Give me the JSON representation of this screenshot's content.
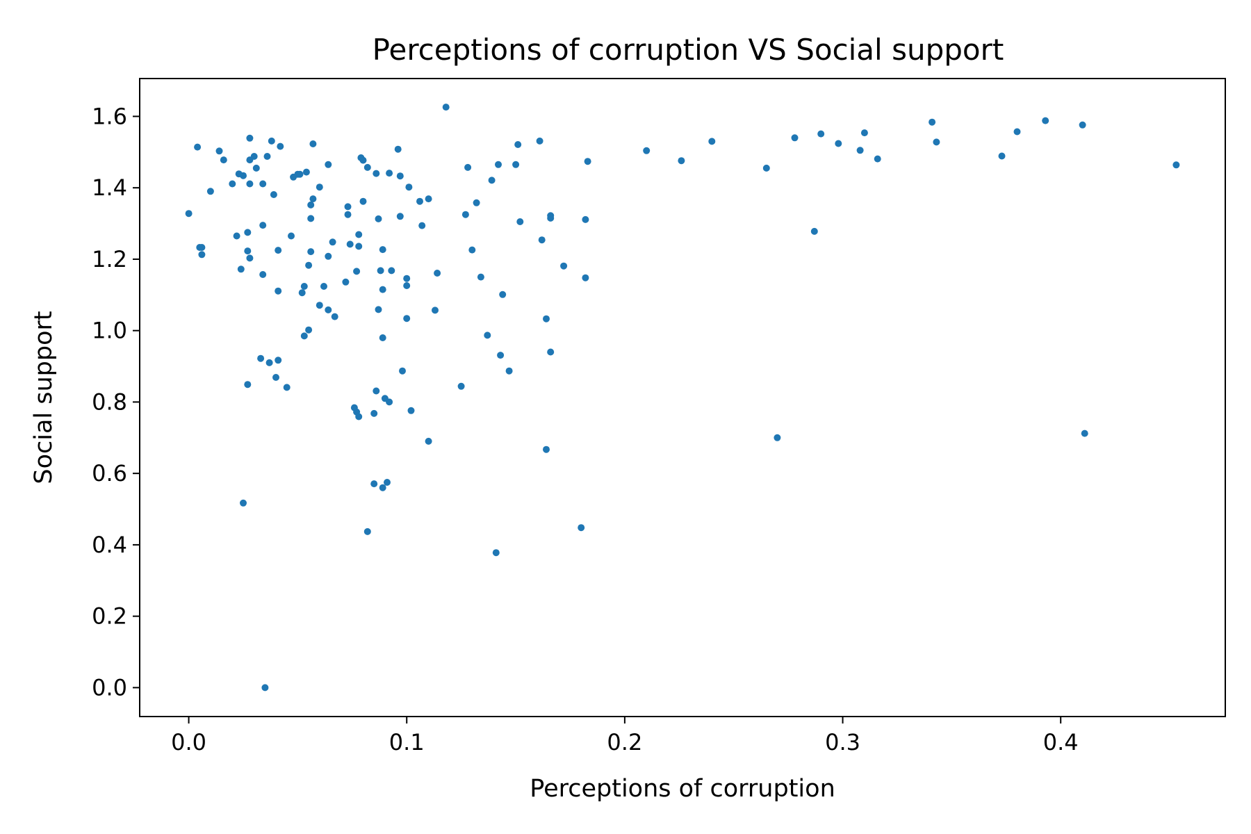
{
  "chart_data": {
    "type": "scatter",
    "title": "Perceptions of corruption VS Social support",
    "xlabel": "Perceptions of corruption",
    "ylabel": "Social support",
    "xlim": [
      -0.0225,
      0.4755
    ],
    "ylim": [
      -0.081,
      1.706
    ],
    "xticks": [
      {
        "value": 0.0,
        "label": "0.0"
      },
      {
        "value": 0.1,
        "label": "0.1"
      },
      {
        "value": 0.2,
        "label": "0.2"
      },
      {
        "value": 0.3,
        "label": "0.3"
      },
      {
        "value": 0.4,
        "label": "0.4"
      }
    ],
    "yticks": [
      {
        "value": 0.0,
        "label": "0.0"
      },
      {
        "value": 0.2,
        "label": "0.2"
      },
      {
        "value": 0.4,
        "label": "0.4"
      },
      {
        "value": 0.6,
        "label": "0.6"
      },
      {
        "value": 0.8,
        "label": "0.8"
      },
      {
        "value": 1.0,
        "label": "1.0"
      },
      {
        "value": 1.2,
        "label": "1.2"
      },
      {
        "value": 1.4,
        "label": "1.4"
      },
      {
        "value": 1.6,
        "label": "1.6"
      }
    ],
    "grid": false,
    "marker_color": "#1f77b4",
    "points": [
      [
        0.0,
        1.328
      ],
      [
        0.004,
        1.514
      ],
      [
        0.005,
        1.233
      ],
      [
        0.006,
        1.233
      ],
      [
        0.006,
        1.213
      ],
      [
        0.01,
        1.39
      ],
      [
        0.014,
        1.503
      ],
      [
        0.016,
        1.478
      ],
      [
        0.02,
        1.411
      ],
      [
        0.022,
        1.265
      ],
      [
        0.023,
        1.439
      ],
      [
        0.024,
        1.172
      ],
      [
        0.025,
        1.434
      ],
      [
        0.025,
        0.517
      ],
      [
        0.027,
        1.275
      ],
      [
        0.027,
        1.223
      ],
      [
        0.027,
        0.849
      ],
      [
        0.028,
        1.539
      ],
      [
        0.028,
        1.411
      ],
      [
        0.028,
        1.478
      ],
      [
        0.028,
        1.203
      ],
      [
        0.03,
        1.488
      ],
      [
        0.031,
        1.455
      ],
      [
        0.033,
        0.922
      ],
      [
        0.034,
        1.411
      ],
      [
        0.034,
        1.295
      ],
      [
        0.034,
        1.157
      ],
      [
        0.035,
        0.0
      ],
      [
        0.036,
        1.488
      ],
      [
        0.037,
        0.91
      ],
      [
        0.038,
        1.531
      ],
      [
        0.039,
        1.381
      ],
      [
        0.04,
        0.869
      ],
      [
        0.041,
        1.225
      ],
      [
        0.041,
        1.111
      ],
      [
        0.041,
        0.917
      ],
      [
        0.042,
        1.516
      ],
      [
        0.045,
        0.841
      ],
      [
        0.047,
        1.265
      ],
      [
        0.048,
        1.43
      ],
      [
        0.05,
        1.438
      ],
      [
        0.051,
        1.438
      ],
      [
        0.052,
        1.106
      ],
      [
        0.053,
        1.124
      ],
      [
        0.053,
        0.985
      ],
      [
        0.054,
        1.444
      ],
      [
        0.055,
        1.183
      ],
      [
        0.055,
        1.002
      ],
      [
        0.056,
        1.352
      ],
      [
        0.056,
        1.314
      ],
      [
        0.056,
        1.221
      ],
      [
        0.057,
        1.369
      ],
      [
        0.057,
        1.523
      ],
      [
        0.06,
        1.402
      ],
      [
        0.06,
        1.071
      ],
      [
        0.062,
        1.124
      ],
      [
        0.064,
        1.465
      ],
      [
        0.064,
        1.208
      ],
      [
        0.064,
        1.058
      ],
      [
        0.066,
        1.248
      ],
      [
        0.067,
        1.039
      ],
      [
        0.072,
        1.136
      ],
      [
        0.073,
        1.347
      ],
      [
        0.073,
        1.325
      ],
      [
        0.074,
        1.242
      ],
      [
        0.076,
        0.784
      ],
      [
        0.077,
        1.166
      ],
      [
        0.077,
        0.772
      ],
      [
        0.078,
        1.269
      ],
      [
        0.078,
        1.236
      ],
      [
        0.078,
        0.759
      ],
      [
        0.079,
        1.484
      ],
      [
        0.08,
        1.477
      ],
      [
        0.08,
        1.362
      ],
      [
        0.082,
        1.457
      ],
      [
        0.082,
        0.437
      ],
      [
        0.085,
        0.768
      ],
      [
        0.085,
        0.571
      ],
      [
        0.086,
        1.44
      ],
      [
        0.086,
        0.831
      ],
      [
        0.087,
        1.313
      ],
      [
        0.087,
        1.059
      ],
      [
        0.088,
        1.168
      ],
      [
        0.089,
        1.227
      ],
      [
        0.089,
        1.115
      ],
      [
        0.089,
        0.98
      ],
      [
        0.089,
        0.56
      ],
      [
        0.09,
        0.81
      ],
      [
        0.091,
        0.575
      ],
      [
        0.092,
        0.8
      ],
      [
        0.092,
        1.441
      ],
      [
        0.093,
        1.168
      ],
      [
        0.096,
        1.508
      ],
      [
        0.097,
        1.433
      ],
      [
        0.097,
        1.32
      ],
      [
        0.098,
        0.887
      ],
      [
        0.1,
        1.146
      ],
      [
        0.1,
        1.126
      ],
      [
        0.1,
        1.034
      ],
      [
        0.101,
        1.402
      ],
      [
        0.102,
        0.776
      ],
      [
        0.106,
        1.362
      ],
      [
        0.107,
        1.294
      ],
      [
        0.11,
        1.369
      ],
      [
        0.11,
        0.69
      ],
      [
        0.113,
        1.057
      ],
      [
        0.114,
        1.161
      ],
      [
        0.118,
        1.626
      ],
      [
        0.125,
        0.844
      ],
      [
        0.127,
        1.325
      ],
      [
        0.128,
        1.457
      ],
      [
        0.13,
        1.226
      ],
      [
        0.132,
        1.358
      ],
      [
        0.134,
        1.15
      ],
      [
        0.137,
        0.987
      ],
      [
        0.139,
        1.421
      ],
      [
        0.141,
        0.378
      ],
      [
        0.142,
        1.465
      ],
      [
        0.143,
        0.931
      ],
      [
        0.144,
        1.101
      ],
      [
        0.147,
        0.887
      ],
      [
        0.15,
        1.465
      ],
      [
        0.151,
        1.521
      ],
      [
        0.152,
        1.305
      ],
      [
        0.161,
        1.531
      ],
      [
        0.162,
        1.254
      ],
      [
        0.164,
        1.033
      ],
      [
        0.164,
        0.667
      ],
      [
        0.166,
        1.322
      ],
      [
        0.166,
        1.315
      ],
      [
        0.166,
        0.94
      ],
      [
        0.172,
        1.181
      ],
      [
        0.18,
        0.448
      ],
      [
        0.182,
        1.311
      ],
      [
        0.182,
        1.148
      ],
      [
        0.183,
        1.474
      ],
      [
        0.21,
        1.504
      ],
      [
        0.226,
        1.476
      ],
      [
        0.24,
        1.53
      ],
      [
        0.265,
        1.455
      ],
      [
        0.27,
        0.7
      ],
      [
        0.278,
        1.54
      ],
      [
        0.287,
        1.278
      ],
      [
        0.29,
        1.551
      ],
      [
        0.298,
        1.524
      ],
      [
        0.308,
        1.505
      ],
      [
        0.31,
        1.554
      ],
      [
        0.316,
        1.481
      ],
      [
        0.341,
        1.584
      ],
      [
        0.343,
        1.528
      ],
      [
        0.373,
        1.489
      ],
      [
        0.38,
        1.557
      ],
      [
        0.393,
        1.588
      ],
      [
        0.41,
        1.576
      ],
      [
        0.411,
        0.712
      ],
      [
        0.453,
        1.464
      ]
    ]
  }
}
